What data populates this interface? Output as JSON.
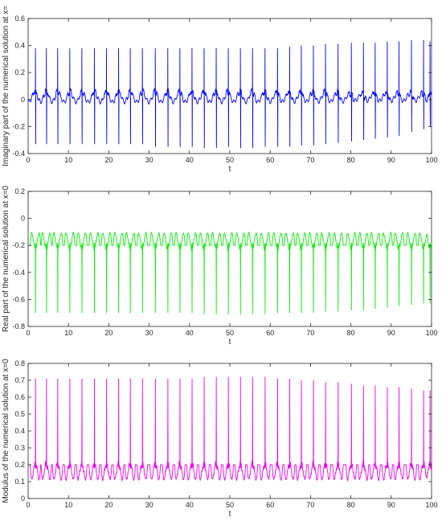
{
  "chart_data": [
    {
      "type": "line",
      "title": "",
      "xlabel": "t",
      "ylabel": "Imaginary part of the numerical solution at x=",
      "xlim": [
        0,
        100
      ],
      "ylim": [
        -0.4,
        0.6
      ],
      "xticks": [
        0,
        10,
        20,
        30,
        40,
        50,
        60,
        70,
        80,
        90,
        100
      ],
      "yticks": [
        -0.4,
        -0.2,
        0,
        0.2,
        0.4,
        0.6
      ],
      "grid": false,
      "color": "#0000ff",
      "series": [
        {
          "spike_times": [
            1.8,
            4.5,
            7.3,
            10.3,
            13.3,
            16.4,
            19.4,
            22.4,
            25.3,
            28.3,
            31.5,
            34.6,
            37.6,
            40.6,
            43.6,
            46.6,
            49.6,
            52.6,
            55.6,
            58.7,
            61.8,
            64.8,
            67.7,
            70.7,
            73.7,
            76.8,
            80.1,
            83.1,
            86.0,
            89.0,
            91.9,
            95.0,
            98.0,
            99.6
          ],
          "spike_peaks": [
            0.38,
            0.38,
            0.38,
            0.38,
            0.38,
            0.38,
            0.38,
            0.38,
            0.38,
            0.38,
            0.38,
            0.38,
            0.38,
            0.38,
            0.38,
            0.38,
            0.38,
            0.38,
            0.38,
            0.38,
            0.38,
            0.39,
            0.4,
            0.4,
            0.41,
            0.41,
            0.42,
            0.42,
            0.42,
            0.43,
            0.43,
            0.44,
            0.44,
            0.43
          ],
          "spike_troughs": [
            -0.33,
            -0.33,
            -0.33,
            -0.33,
            -0.33,
            -0.33,
            -0.33,
            -0.33,
            -0.33,
            -0.33,
            -0.35,
            -0.35,
            -0.35,
            -0.35,
            -0.36,
            -0.36,
            -0.35,
            -0.36,
            -0.36,
            -0.35,
            -0.35,
            -0.35,
            -0.34,
            -0.34,
            -0.33,
            -0.32,
            -0.31,
            -0.3,
            -0.29,
            -0.28,
            -0.27,
            -0.24,
            -0.22,
            -0.2
          ],
          "baseline_range": [
            -0.05,
            0.1
          ]
        }
      ]
    },
    {
      "type": "line",
      "title": "",
      "xlabel": "t",
      "ylabel": "Real part of the numerical solution at x=0",
      "xlim": [
        0,
        100
      ],
      "ylim": [
        -0.8,
        0.2
      ],
      "xticks": [
        0,
        10,
        20,
        30,
        40,
        50,
        60,
        70,
        80,
        90,
        100
      ],
      "yticks": [
        -0.8,
        -0.6,
        -0.4,
        -0.2,
        0,
        0.2
      ],
      "grid": false,
      "color": "#00ee00",
      "series": [
        {
          "spike_times": [
            1.8,
            4.5,
            7.3,
            10.3,
            13.3,
            16.4,
            19.4,
            22.4,
            25.3,
            28.3,
            31.5,
            34.6,
            37.6,
            40.6,
            43.6,
            46.6,
            49.6,
            52.6,
            55.6,
            58.7,
            61.8,
            64.8,
            67.7,
            70.7,
            73.7,
            76.8,
            80.1,
            83.1,
            86.0,
            89.0,
            91.9,
            95.0,
            98.0,
            99.6
          ],
          "spike_troughs": [
            -0.7,
            -0.7,
            -0.7,
            -0.7,
            -0.7,
            -0.7,
            -0.7,
            -0.7,
            -0.7,
            -0.7,
            -0.7,
            -0.7,
            -0.7,
            -0.7,
            -0.71,
            -0.71,
            -0.71,
            -0.71,
            -0.71,
            -0.71,
            -0.7,
            -0.7,
            -0.7,
            -0.7,
            -0.69,
            -0.69,
            -0.68,
            -0.68,
            -0.67,
            -0.66,
            -0.65,
            -0.64,
            -0.63,
            -0.63
          ],
          "baseline_range": [
            -0.2,
            0.0
          ]
        }
      ]
    },
    {
      "type": "line",
      "title": "",
      "xlabel": "t",
      "ylabel": "Modulus of the numerical solution at x=0",
      "xlim": [
        0,
        100
      ],
      "ylim": [
        0,
        0.8
      ],
      "xticks": [
        0,
        10,
        20,
        30,
        40,
        50,
        60,
        70,
        80,
        90,
        100
      ],
      "yticks": [
        0,
        0.1,
        0.2,
        0.3,
        0.4,
        0.5,
        0.6,
        0.7,
        0.8
      ],
      "grid": false,
      "color": "#ee00ee",
      "series": [
        {
          "spike_times": [
            1.8,
            4.5,
            7.3,
            10.3,
            13.3,
            16.4,
            19.4,
            22.4,
            25.3,
            28.3,
            31.5,
            34.6,
            37.6,
            40.6,
            43.6,
            46.6,
            49.6,
            52.6,
            55.6,
            58.7,
            61.8,
            64.8,
            67.7,
            70.7,
            73.7,
            76.8,
            80.1,
            83.1,
            86.0,
            89.0,
            91.9,
            95.0,
            98.0,
            99.6
          ],
          "spike_peaks": [
            0.71,
            0.71,
            0.71,
            0.71,
            0.71,
            0.71,
            0.71,
            0.71,
            0.71,
            0.71,
            0.71,
            0.71,
            0.71,
            0.71,
            0.72,
            0.72,
            0.72,
            0.72,
            0.72,
            0.72,
            0.71,
            0.71,
            0.7,
            0.7,
            0.69,
            0.69,
            0.68,
            0.67,
            0.67,
            0.66,
            0.66,
            0.65,
            0.64,
            0.64
          ],
          "baseline_range": [
            0.0,
            0.25
          ]
        }
      ]
    }
  ]
}
